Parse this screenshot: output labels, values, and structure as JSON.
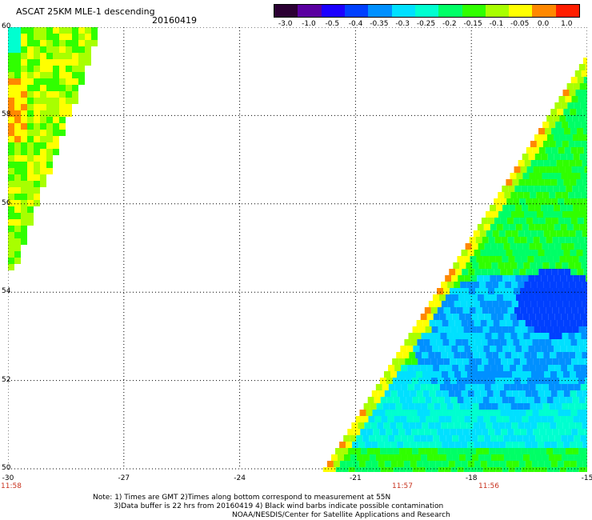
{
  "title": "ASCAT 25KM MLE-1 descending",
  "date": "20160419",
  "colorbar": {
    "labels": [
      "-3.0",
      "-1.0",
      "-0.5",
      "-0.4",
      "-0.35",
      "-0.3",
      "-0.25",
      "-0.2",
      "-0.15",
      "-0.1",
      "-0.05",
      "0.0",
      "1.0"
    ],
    "colors": [
      "#2b0033",
      "#5a00a0",
      "#1b00ff",
      "#0040ff",
      "#0090ff",
      "#00e0ff",
      "#00ffd0",
      "#00ff66",
      "#30ff00",
      "#a8ff00",
      "#ffff00",
      "#ff8800",
      "#ff1e00"
    ]
  },
  "map": {
    "lon_labels": [
      "-30",
      "-27",
      "-24",
      "-21",
      "-18",
      "-15"
    ],
    "lat_labels": [
      "60",
      "58",
      "56",
      "54",
      "52",
      "50"
    ],
    "grid": "dotted"
  },
  "times": [
    "11:58",
    "11:57",
    "11:56"
  ],
  "note": {
    "line1": "Note: 1) Times are GMT 2)Times along bottom correspond to measurement at 55N",
    "line2": "3)Data buffer is 22 hrs from 20160419 4) Black wind barbs indicate possible contamination",
    "line3": "NOAA/NESDIS/Center for Satellite Applications and Research"
  }
}
